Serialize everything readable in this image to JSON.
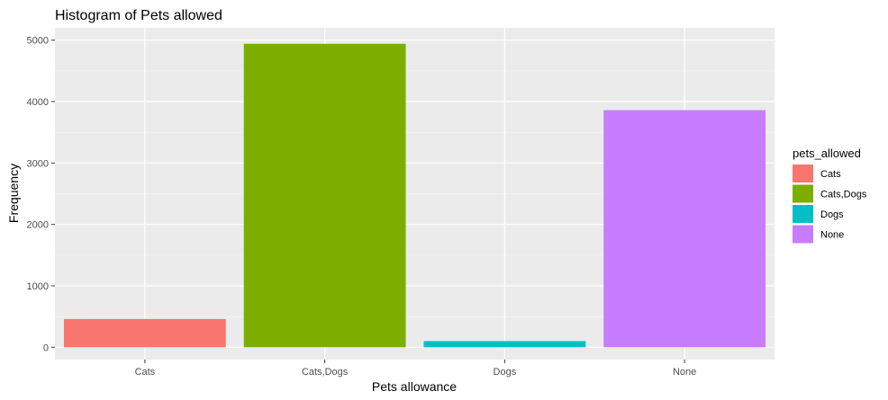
{
  "chart_data": {
    "type": "bar",
    "title": "Histogram of Pets allowed",
    "xlabel": "Pets allowance",
    "ylabel": "Frequency",
    "categories": [
      "Cats",
      "Cats,Dogs",
      "Dogs",
      "None"
    ],
    "values": [
      460,
      4940,
      100,
      3860
    ],
    "colors": [
      "#F8766D",
      "#7CAE00",
      "#00BFC4",
      "#C77CFF"
    ],
    "ylim": [
      -200,
      5200
    ],
    "yticks": [
      0,
      1000,
      2000,
      3000,
      4000,
      5000
    ],
    "grid": true,
    "legend": {
      "title": "pets_allowed",
      "position": "right",
      "entries": [
        "Cats",
        "Cats,Dogs",
        "Dogs",
        "None"
      ]
    }
  }
}
